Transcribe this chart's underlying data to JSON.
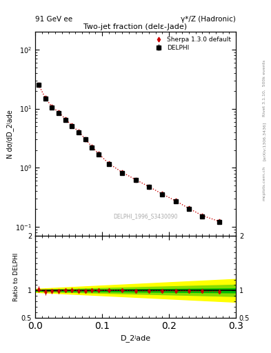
{
  "title_main": "Two-jet fraction (delε-Jade)",
  "header_left": "91 GeV ee",
  "header_right": "γ*/Z (Hadronic)",
  "ylabel_main": "N dσ/dD_2ʲade",
  "ylabel_ratio": "Ratio to DELPHI",
  "xlabel": "D_2ʲade",
  "watermark": "DELPHI_1996_S3430090",
  "right_label_top": "Rivet 3.1.10,  500k events",
  "right_label_bottom": "[arXiv:1306.3436]",
  "right_label_site": "mcplots.cern.ch",
  "xlim": [
    0.0,
    0.3
  ],
  "ylim_main": [
    0.07,
    200
  ],
  "ylim_ratio": [
    0.5,
    2.0
  ],
  "data_x": [
    0.005,
    0.015,
    0.025,
    0.035,
    0.045,
    0.055,
    0.065,
    0.075,
    0.085,
    0.095,
    0.11,
    0.13,
    0.15,
    0.17,
    0.19,
    0.21,
    0.23,
    0.25,
    0.275
  ],
  "data_y": [
    25.0,
    15.0,
    10.5,
    8.5,
    6.5,
    5.0,
    4.0,
    3.0,
    2.2,
    1.7,
    1.15,
    0.82,
    0.62,
    0.47,
    0.35,
    0.27,
    0.2,
    0.15,
    0.12
  ],
  "data_yerr": [
    1.5,
    0.9,
    0.6,
    0.5,
    0.35,
    0.28,
    0.22,
    0.18,
    0.13,
    0.1,
    0.07,
    0.05,
    0.04,
    0.03,
    0.02,
    0.02,
    0.015,
    0.012,
    0.01
  ],
  "mc_x": [
    0.005,
    0.015,
    0.025,
    0.035,
    0.045,
    0.055,
    0.065,
    0.075,
    0.085,
    0.095,
    0.11,
    0.13,
    0.15,
    0.17,
    0.19,
    0.21,
    0.23,
    0.25,
    0.275
  ],
  "mc_y": [
    25.5,
    15.2,
    10.8,
    8.7,
    6.7,
    5.15,
    4.1,
    3.05,
    2.25,
    1.72,
    1.18,
    0.84,
    0.63,
    0.48,
    0.36,
    0.275,
    0.205,
    0.155,
    0.124
  ],
  "ratio_y": [
    1.02,
    0.975,
    0.985,
    0.99,
    1.005,
    1.01,
    0.995,
    0.99,
    1.0,
    1.0,
    1.005,
    1.0,
    0.99,
    0.99,
    0.995,
    0.99,
    0.99,
    0.985,
    0.98
  ],
  "ratio_yerr": [
    0.06,
    0.055,
    0.05,
    0.045,
    0.04,
    0.04,
    0.038,
    0.035,
    0.033,
    0.03,
    0.025,
    0.022,
    0.02,
    0.018,
    0.016,
    0.015,
    0.014,
    0.013,
    0.012
  ],
  "data_color": "#000000",
  "mc_color": "#cc0000",
  "band_green_inner": "#00bb00",
  "band_green_outer": "#88dd00",
  "band_yellow": "#ffff00",
  "bg_color": "#ffffff"
}
